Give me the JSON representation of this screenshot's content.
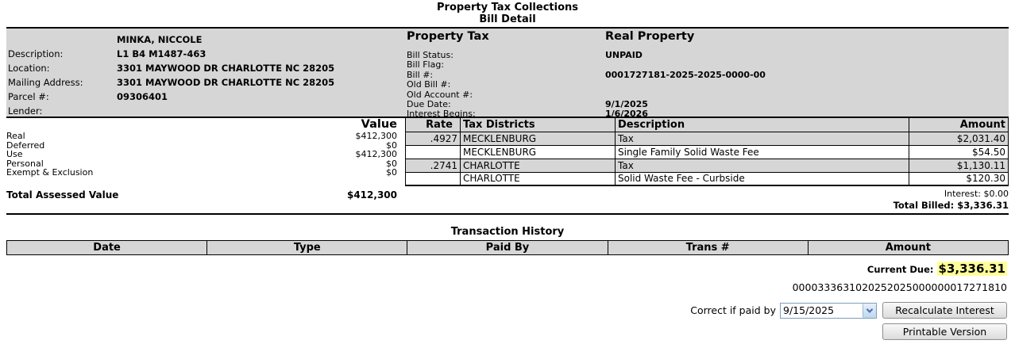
{
  "page_title": {
    "line1": "Property Tax Collections",
    "line2": "Bill Detail"
  },
  "property_info": {
    "owner_label": "",
    "owner": "MINKA, NICCOLE",
    "fields": [
      {
        "label": "Description:",
        "value": "L1 B4 M1487-463"
      },
      {
        "label": "Location:",
        "value": "3301 MAYWOOD DR CHARLOTTE NC 28205"
      },
      {
        "label": "Mailing Address:",
        "value": "3301 MAYWOOD DR CHARLOTTE NC 28205"
      },
      {
        "label": "Parcel #:",
        "value": "09306401"
      },
      {
        "label": "Lender:",
        "value": ""
      }
    ]
  },
  "bill_info": {
    "section_title": "Property Tax",
    "bill_type": "Real Property",
    "fields": [
      {
        "label": "Bill Status:",
        "value": "UNPAID"
      },
      {
        "label": "Bill Flag:",
        "value": ""
      },
      {
        "label": "Bill #:",
        "value": "0001727181-2025-2025-0000-00"
      },
      {
        "label": "Old Bill #:",
        "value": ""
      },
      {
        "label": "Old Account #:",
        "value": ""
      },
      {
        "label": "Due Date:",
        "value": "9/1/2025"
      },
      {
        "label": "Interest Begins:",
        "value": "1/6/2026"
      }
    ]
  },
  "assessed_values": {
    "header": "Value",
    "rows": [
      {
        "label": "Real",
        "value": "$412,300"
      },
      {
        "label": "Deferred",
        "value": "$0"
      },
      {
        "label": "Use",
        "value": "$412,300"
      },
      {
        "label": "Personal",
        "value": "$0"
      },
      {
        "label": "Exempt & Exclusion",
        "value": "$0"
      }
    ],
    "total_label": "Total Assessed Value",
    "total_value": "$412,300"
  },
  "tax_table": {
    "headers": {
      "rate": "Rate",
      "district": "Tax Districts",
      "description": "Description",
      "amount": "Amount"
    },
    "rows": [
      {
        "rate": ".4927",
        "district": "MECKLENBURG",
        "description": "Tax",
        "amount": "$2,031.40"
      },
      {
        "rate": "",
        "district": "MECKLENBURG",
        "description": "Single Family Solid Waste Fee",
        "amount": "$54.50"
      },
      {
        "rate": ".2741",
        "district": "CHARLOTTE",
        "description": "Tax",
        "amount": "$1,130.11"
      },
      {
        "rate": "",
        "district": "CHARLOTTE",
        "description": "Solid Waste Fee - Curbside",
        "amount": "$120.30"
      }
    ],
    "interest_line": "Interest: $0.00",
    "total_billed_line": "Total Billed: $3,336.31"
  },
  "transaction_history": {
    "title": "Transaction History",
    "headers": [
      "Date",
      "Type",
      "Paid By",
      "Trans #",
      "Amount"
    ],
    "rows": []
  },
  "summary": {
    "current_due_label": "Current Due:",
    "current_due_value": "$3,336.31",
    "scanline": "0000333631020252025000000017271810",
    "paid_by_label": "Correct if paid by",
    "paid_by_date": "9/15/2025",
    "recalculate_button": "Recalculate Interest",
    "printable_button": "Printable Version"
  },
  "colors": {
    "band_gray": "#d6d6d6",
    "highlight_yellow": "#ffff99",
    "combo_border": "#7f9db9"
  }
}
